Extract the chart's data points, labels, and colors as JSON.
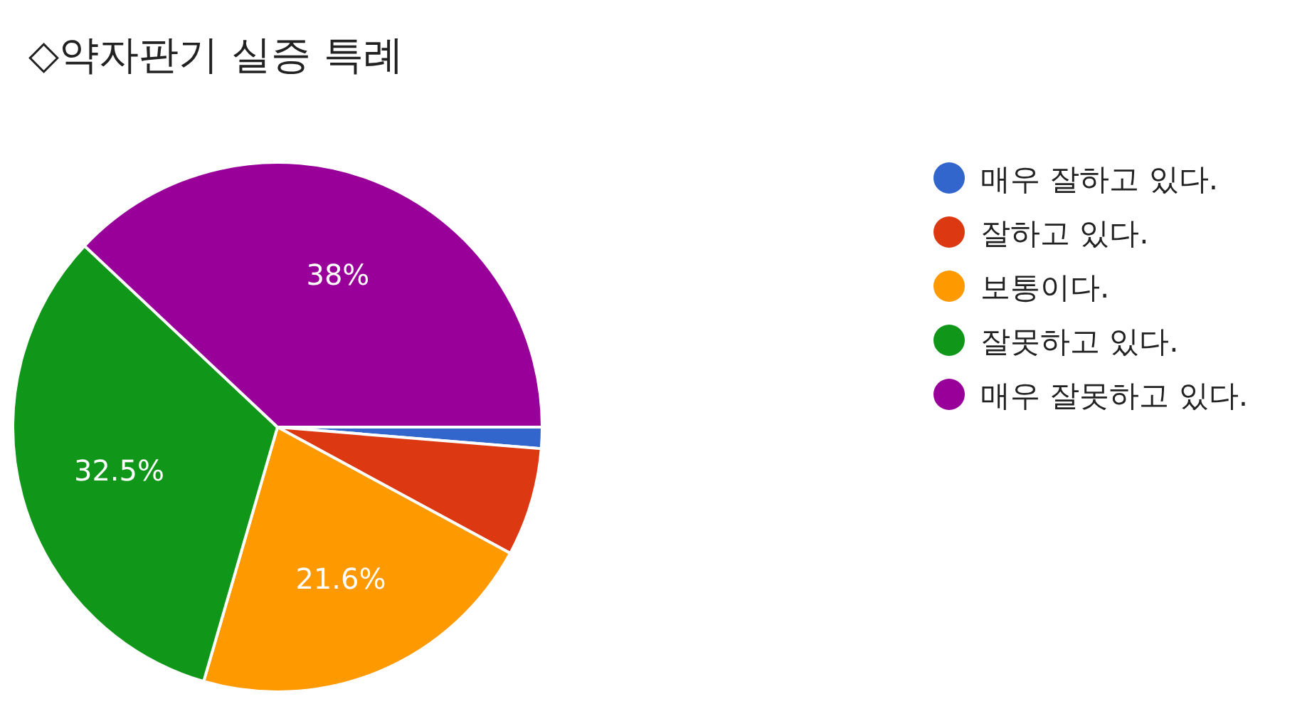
{
  "chart_data": {
    "type": "pie",
    "title": "◇약자판기 실증 특례",
    "categories": [
      "매우 잘하고 있다.",
      "잘하고 있다.",
      "보통이다.",
      "잘못하고 있다.",
      "매우 잘못하고 있다."
    ],
    "values": [
      1.3,
      6.6,
      21.6,
      32.5,
      38
    ],
    "colors": [
      "#3366cc",
      "#dc3912",
      "#ff9900",
      "#109618",
      "#990099"
    ],
    "value_labels": [
      null,
      null,
      "21.6%",
      "32.5%",
      "38%"
    ],
    "legend": "right"
  }
}
